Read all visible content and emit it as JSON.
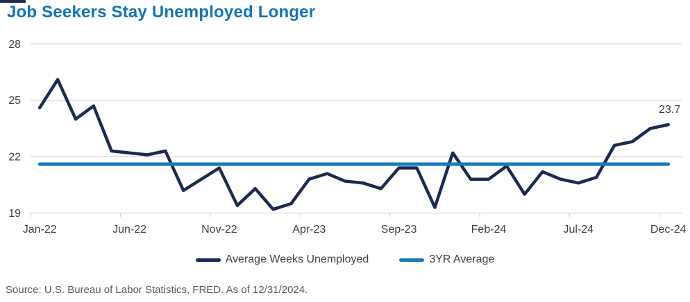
{
  "header": {
    "title": "Job Seekers Stay Unemployed Longer"
  },
  "colors": {
    "title": "#1173b9",
    "series_line": "#1b2a50",
    "average_line": "#187abe",
    "gridline": "#d9d9d9",
    "axis_text": "#404040",
    "end_label_text": "#3a3a3a",
    "source_text": "#595959",
    "corner_bar": "#1b2a50"
  },
  "legend": [
    {
      "label": "Average Weeks Unemployed",
      "color": "#1b2a50"
    },
    {
      "label": "3YR Average",
      "color": "#187abe"
    }
  ],
  "source": {
    "text": "Source: U.S. Bureau of Labor Statistics, FRED. As of 12/31/2024."
  },
  "chart_data": {
    "type": "line",
    "title": "Job Seekers Stay Unemployed Longer",
    "xlabel": "",
    "ylabel": "",
    "ylim": [
      19,
      28
    ],
    "yticks": [
      19,
      22,
      25,
      28
    ],
    "grid": "horizontal",
    "legend_position": "bottom",
    "grid_color": "#d9d9d9",
    "xtick_labels": [
      "Jan-22",
      "Jun-22",
      "Nov-22",
      "Apr-23",
      "Sep-23",
      "Feb-24",
      "Jul-24",
      "Dec-24"
    ],
    "categories": [
      "Jan-22",
      "Feb-22",
      "Mar-22",
      "Apr-22",
      "May-22",
      "Jun-22",
      "Jul-22",
      "Aug-22",
      "Sep-22",
      "Oct-22",
      "Nov-22",
      "Dec-22",
      "Jan-23",
      "Feb-23",
      "Mar-23",
      "Apr-23",
      "May-23",
      "Jun-23",
      "Jul-23",
      "Aug-23",
      "Sep-23",
      "Oct-23",
      "Nov-23",
      "Dec-23",
      "Jan-24",
      "Feb-24",
      "Mar-24",
      "Apr-24",
      "May-24",
      "Jun-24",
      "Jul-24",
      "Aug-24",
      "Sep-24",
      "Oct-24",
      "Nov-24",
      "Dec-24"
    ],
    "series": [
      {
        "name": "Average Weeks Unemployed",
        "color": "#1b2a50",
        "values": [
          24.6,
          26.1,
          24.0,
          24.7,
          22.3,
          22.2,
          22.1,
          22.3,
          20.2,
          20.8,
          21.4,
          19.4,
          20.3,
          19.2,
          19.5,
          20.8,
          21.1,
          20.7,
          20.6,
          20.3,
          21.4,
          21.4,
          19.3,
          22.2,
          20.8,
          20.8,
          21.5,
          20.0,
          21.2,
          20.8,
          20.6,
          20.9,
          22.6,
          22.8,
          23.5,
          23.7
        ]
      },
      {
        "name": "3YR Average",
        "color": "#187abe",
        "constant_value": 21.6
      }
    ],
    "end_label": "23.7"
  }
}
